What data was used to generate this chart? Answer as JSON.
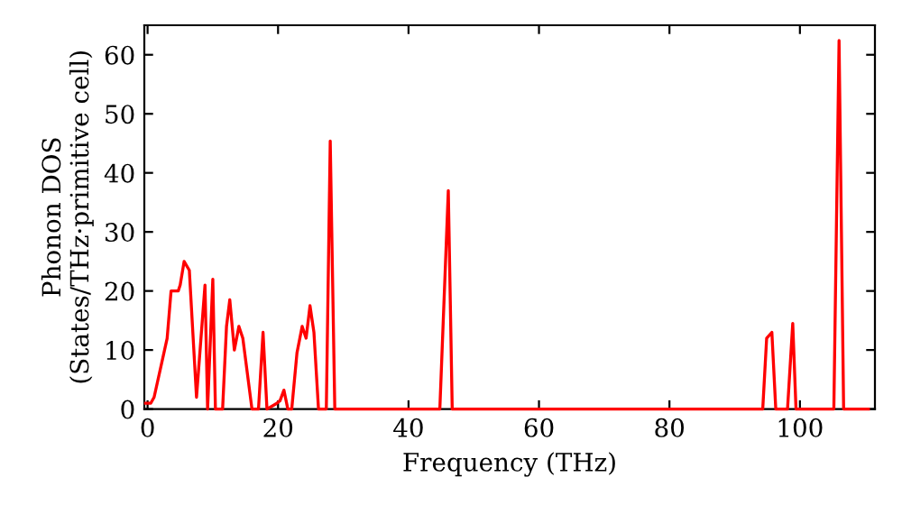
{
  "chart_data": {
    "type": "line",
    "xlabel": "Frequency (THz)",
    "ylabel": "Phonon DOS\n(States/THz·primitive cell)",
    "xlim": [
      -0.5,
      111.5
    ],
    "ylim": [
      0,
      65
    ],
    "xticks": [
      0,
      20,
      40,
      60,
      80,
      100
    ],
    "yticks": [
      0,
      10,
      20,
      30,
      40,
      50,
      60
    ],
    "grid": false,
    "legend": false,
    "marker": "none",
    "line_style": "solid",
    "series": [
      {
        "color": "#ff0000",
        "x": [
          -0.3,
          0.5,
          1.0,
          2.0,
          3.0,
          3.6,
          4.7,
          5.0,
          5.6,
          6.4,
          7.5,
          8.8,
          9.2,
          10.0,
          10.4,
          11.5,
          12.1,
          12.6,
          13.3,
          14.0,
          14.6,
          16.0,
          17.0,
          17.7,
          18.3,
          19.7,
          20.3,
          20.9,
          21.5,
          22.1,
          22.9,
          23.7,
          24.3,
          24.9,
          25.5,
          26.2,
          27.4,
          28.0,
          28.7,
          44.8,
          46.1,
          46.7,
          94.3,
          94.9,
          95.7,
          96.3,
          98.1,
          98.9,
          99.4,
          105.2,
          106.0,
          106.7,
          110.5
        ],
        "values": [
          1,
          1,
          2,
          7,
          12,
          20,
          20,
          21,
          25,
          23.5,
          2,
          21,
          0,
          22,
          0,
          0,
          14,
          18.5,
          10,
          14,
          12,
          0,
          0,
          13,
          0,
          0.9,
          1.4,
          3.2,
          0,
          0,
          9.5,
          14,
          12,
          17.5,
          13,
          0,
          0,
          45.4,
          0,
          0,
          37,
          0,
          0,
          12,
          13,
          0,
          0,
          14.5,
          0,
          0,
          62.4,
          0,
          0
        ]
      }
    ]
  }
}
